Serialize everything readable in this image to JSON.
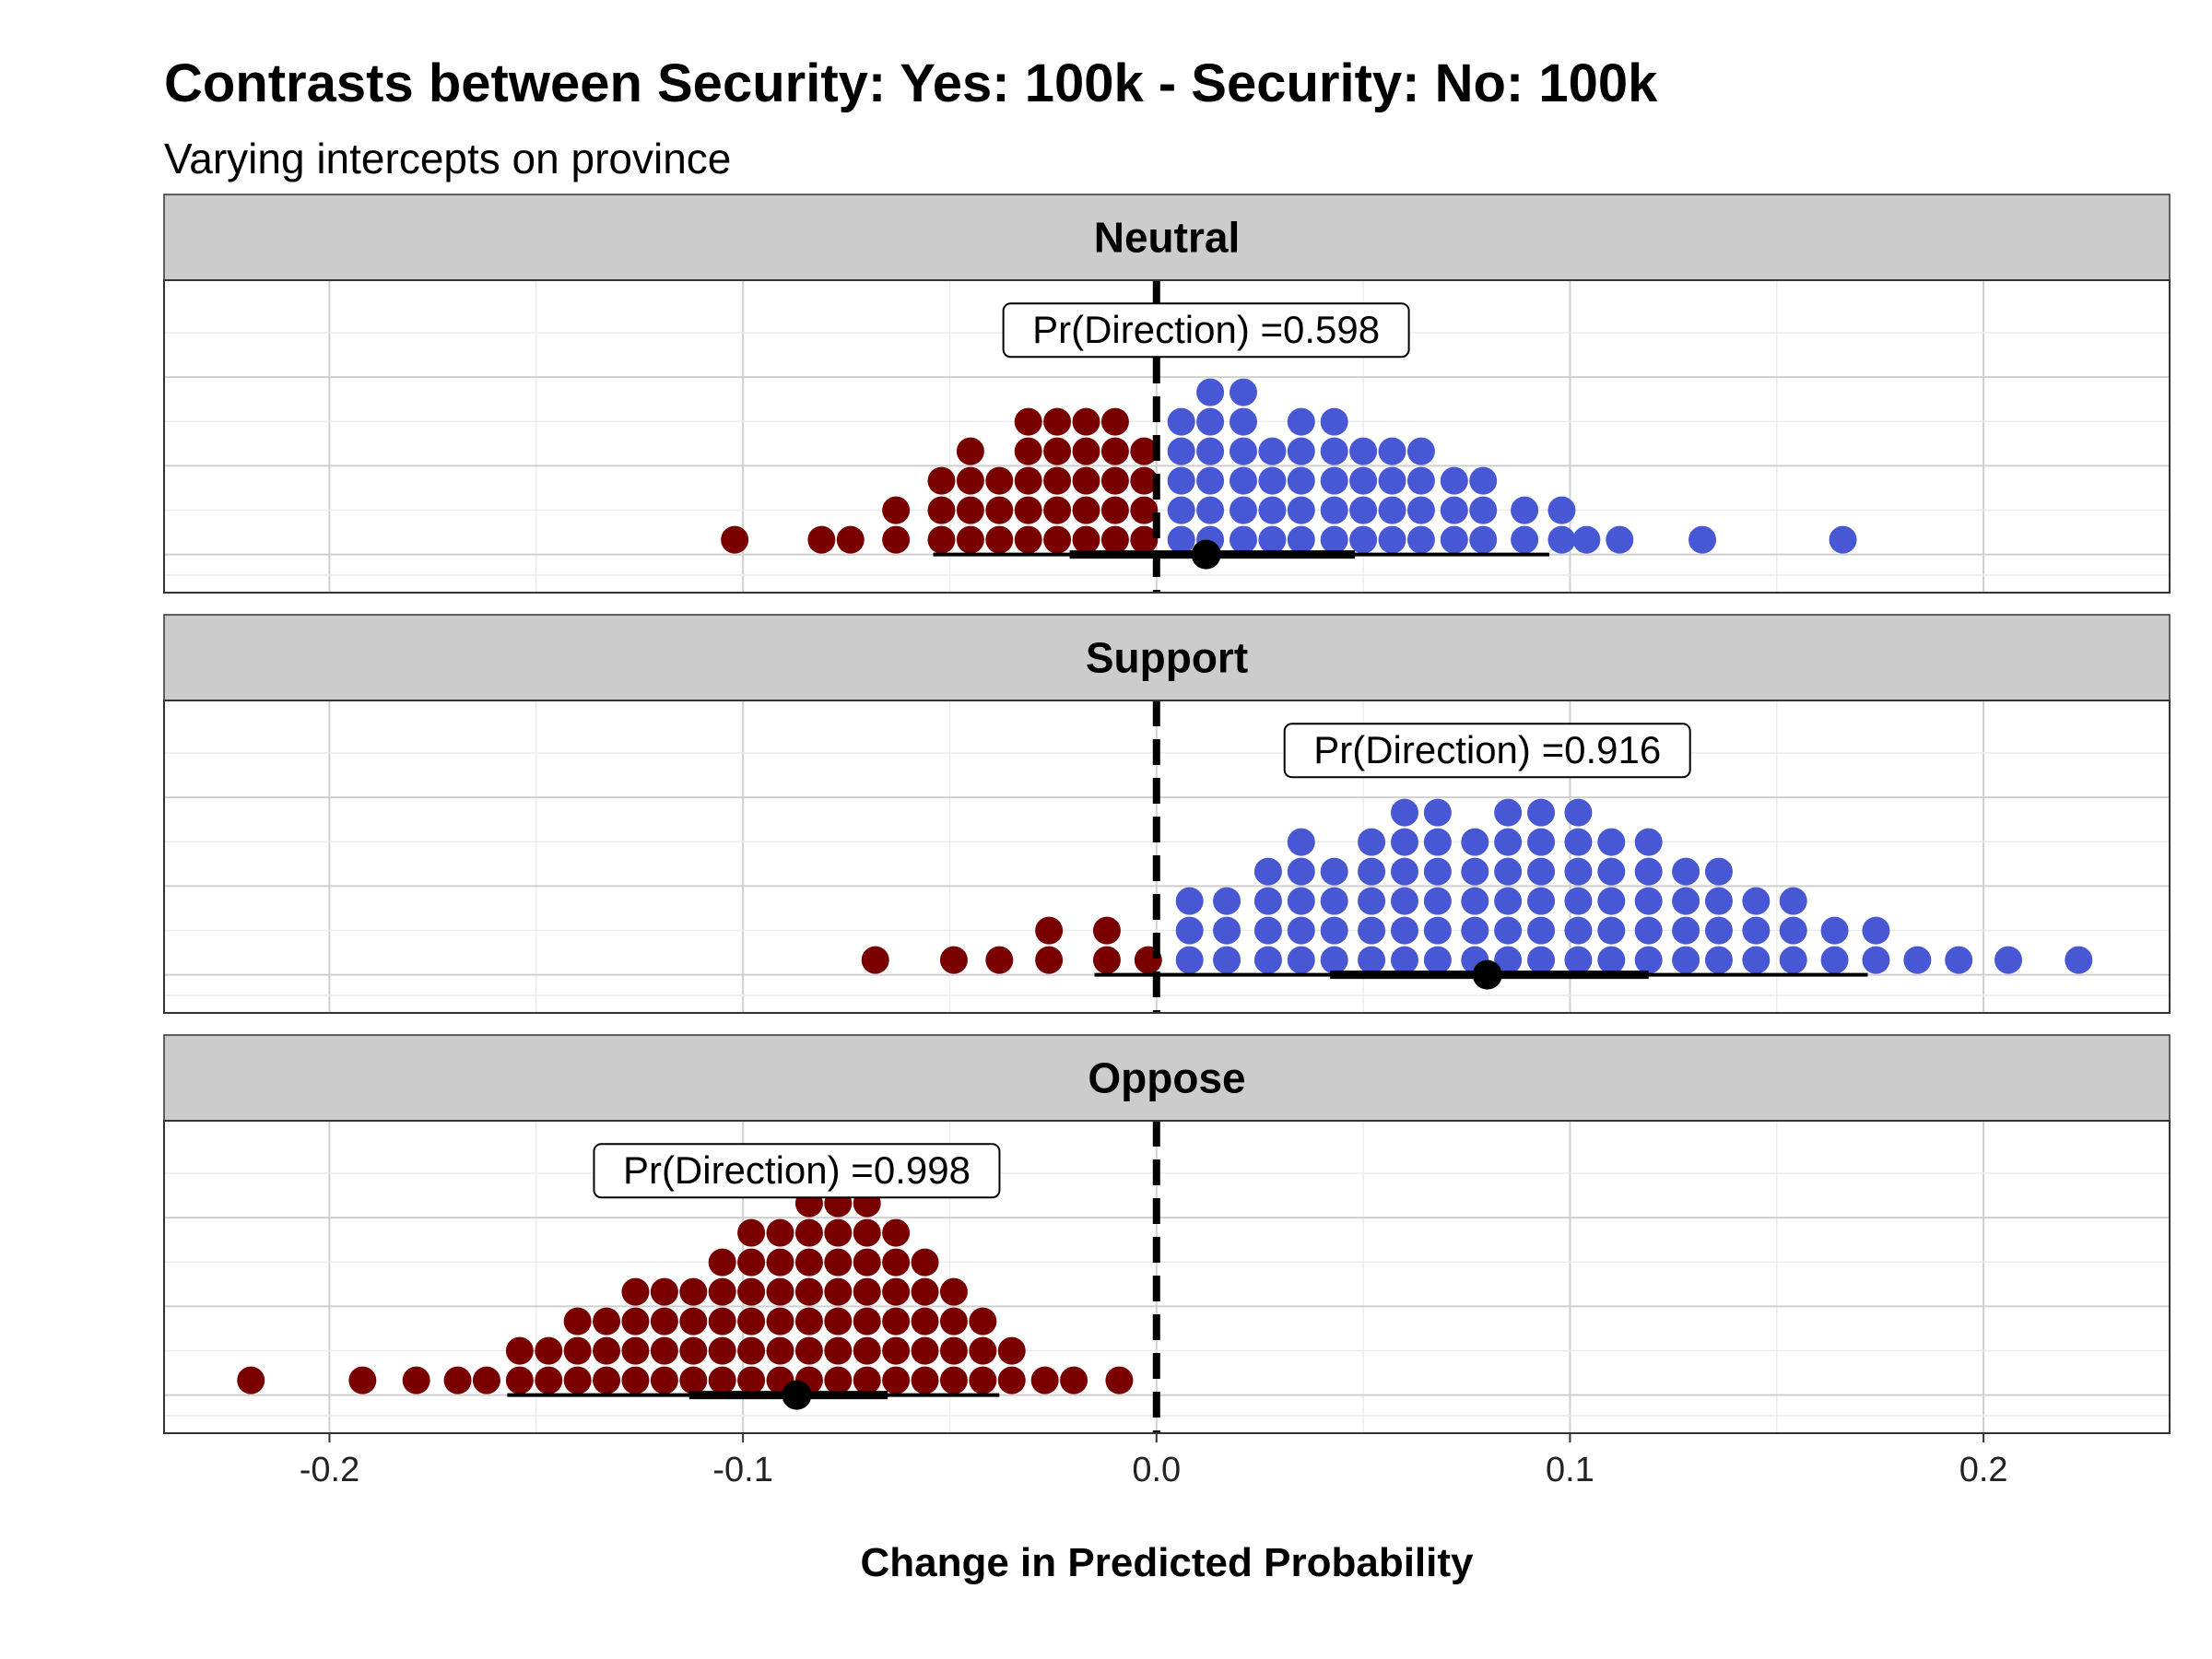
{
  "chart_data": {
    "type": "dotplot",
    "title": "Contrasts between Security: Yes: 100k - Security: No: 100k",
    "subtitle": "Varying intercepts on province",
    "xlabel": "Change in Predicted Probability",
    "xlim": [
      -0.24,
      0.245
    ],
    "xticks": [
      -0.2,
      -0.1,
      0.0,
      0.1,
      0.2
    ],
    "xtick_labels": [
      "-0.2",
      "-0.1",
      "0.0",
      "0.1",
      "0.2"
    ],
    "reference_line": 0.0,
    "colors": {
      "negative": "#7a0000",
      "positive": "#4857d4",
      "point": "#000000",
      "strip": "#cccccc"
    },
    "facets": [
      {
        "label": "Neutral",
        "annotation": "Pr(Direction) =0.598",
        "annotation_x": 0.012,
        "median": 0.012,
        "interval_inner": [
          -0.021,
          0.048
        ],
        "interval_outer": [
          -0.054,
          0.095
        ],
        "dot_columns": [
          {
            "x": -0.102,
            "n": 1
          },
          {
            "x": -0.081,
            "n": 1
          },
          {
            "x": -0.074,
            "n": 1
          },
          {
            "x": -0.063,
            "n": 2
          },
          {
            "x": -0.052,
            "n": 3
          },
          {
            "x": -0.045,
            "n": 4
          },
          {
            "x": -0.038,
            "n": 3
          },
          {
            "x": -0.031,
            "n": 5
          },
          {
            "x": -0.024,
            "n": 5
          },
          {
            "x": -0.017,
            "n": 5
          },
          {
            "x": -0.01,
            "n": 5
          },
          {
            "x": -0.003,
            "n": 4
          },
          {
            "x": 0.006,
            "n": 5
          },
          {
            "x": 0.013,
            "n": 6
          },
          {
            "x": 0.021,
            "n": 6
          },
          {
            "x": 0.028,
            "n": 4
          },
          {
            "x": 0.035,
            "n": 5
          },
          {
            "x": 0.043,
            "n": 5
          },
          {
            "x": 0.05,
            "n": 4
          },
          {
            "x": 0.057,
            "n": 4
          },
          {
            "x": 0.064,
            "n": 4
          },
          {
            "x": 0.072,
            "n": 3
          },
          {
            "x": 0.079,
            "n": 3
          },
          {
            "x": 0.089,
            "n": 2
          },
          {
            "x": 0.098,
            "n": 2
          },
          {
            "x": 0.104,
            "n": 1
          },
          {
            "x": 0.112,
            "n": 1
          },
          {
            "x": 0.132,
            "n": 1
          },
          {
            "x": 0.166,
            "n": 1
          }
        ]
      },
      {
        "label": "Support",
        "annotation": "Pr(Direction) =0.916",
        "annotation_x": 0.08,
        "median": 0.08,
        "interval_inner": [
          0.042,
          0.119
        ],
        "interval_outer": [
          -0.015,
          0.172
        ],
        "dot_columns": [
          {
            "x": -0.068,
            "n": 1
          },
          {
            "x": -0.049,
            "n": 1
          },
          {
            "x": -0.038,
            "n": 1
          },
          {
            "x": -0.026,
            "n": 2
          },
          {
            "x": -0.012,
            "n": 2
          },
          {
            "x": -0.002,
            "n": 1
          },
          {
            "x": 0.008,
            "n": 3
          },
          {
            "x": 0.017,
            "n": 3
          },
          {
            "x": 0.027,
            "n": 4
          },
          {
            "x": 0.035,
            "n": 5
          },
          {
            "x": 0.043,
            "n": 4
          },
          {
            "x": 0.052,
            "n": 5
          },
          {
            "x": 0.06,
            "n": 6
          },
          {
            "x": 0.068,
            "n": 6
          },
          {
            "x": 0.077,
            "n": 5
          },
          {
            "x": 0.085,
            "n": 6
          },
          {
            "x": 0.093,
            "n": 6
          },
          {
            "x": 0.102,
            "n": 6
          },
          {
            "x": 0.11,
            "n": 5
          },
          {
            "x": 0.119,
            "n": 5
          },
          {
            "x": 0.128,
            "n": 4
          },
          {
            "x": 0.136,
            "n": 4
          },
          {
            "x": 0.145,
            "n": 3
          },
          {
            "x": 0.154,
            "n": 3
          },
          {
            "x": 0.164,
            "n": 2
          },
          {
            "x": 0.174,
            "n": 2
          },
          {
            "x": 0.184,
            "n": 1
          },
          {
            "x": 0.194,
            "n": 1
          },
          {
            "x": 0.206,
            "n": 1
          },
          {
            "x": 0.223,
            "n": 1
          }
        ]
      },
      {
        "label": "Oppose",
        "annotation": "Pr(Direction) =0.998",
        "annotation_x": -0.087,
        "median": -0.087,
        "interval_inner": [
          -0.113,
          -0.065
        ],
        "interval_outer": [
          -0.157,
          -0.038
        ],
        "dot_columns": [
          {
            "x": -0.219,
            "n": 1
          },
          {
            "x": -0.192,
            "n": 1
          },
          {
            "x": -0.179,
            "n": 1
          },
          {
            "x": -0.169,
            "n": 1
          },
          {
            "x": -0.162,
            "n": 1
          },
          {
            "x": -0.154,
            "n": 2
          },
          {
            "x": -0.147,
            "n": 2
          },
          {
            "x": -0.14,
            "n": 3
          },
          {
            "x": -0.133,
            "n": 3
          },
          {
            "x": -0.126,
            "n": 4
          },
          {
            "x": -0.119,
            "n": 4
          },
          {
            "x": -0.112,
            "n": 4
          },
          {
            "x": -0.105,
            "n": 5
          },
          {
            "x": -0.098,
            "n": 6
          },
          {
            "x": -0.091,
            "n": 6
          },
          {
            "x": -0.084,
            "n": 7
          },
          {
            "x": -0.077,
            "n": 7
          },
          {
            "x": -0.07,
            "n": 7
          },
          {
            "x": -0.063,
            "n": 6
          },
          {
            "x": -0.056,
            "n": 5
          },
          {
            "x": -0.049,
            "n": 4
          },
          {
            "x": -0.042,
            "n": 3
          },
          {
            "x": -0.035,
            "n": 2
          },
          {
            "x": -0.027,
            "n": 1
          },
          {
            "x": -0.02,
            "n": 1
          },
          {
            "x": -0.009,
            "n": 1
          }
        ]
      }
    ]
  }
}
